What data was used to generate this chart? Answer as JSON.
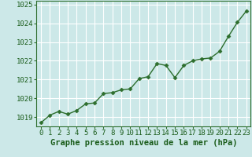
{
  "x": [
    0,
    1,
    2,
    3,
    4,
    5,
    6,
    7,
    8,
    9,
    10,
    11,
    12,
    13,
    14,
    15,
    16,
    17,
    18,
    19,
    20,
    21,
    22,
    23
  ],
  "y": [
    1018.7,
    1019.1,
    1019.3,
    1019.15,
    1019.35,
    1019.7,
    1019.75,
    1020.25,
    1020.3,
    1020.45,
    1020.5,
    1021.05,
    1021.15,
    1021.85,
    1021.75,
    1021.1,
    1021.75,
    1022.0,
    1022.1,
    1022.15,
    1022.5,
    1023.3,
    1024.05,
    1024.65
  ],
  "line_color": "#2d6e2d",
  "marker": "D",
  "marker_size": 2.5,
  "line_width": 1.0,
  "bg_color": "#cce8e8",
  "grid_color": "#ffffff",
  "xlabel": "Graphe pression niveau de la mer (hPa)",
  "xlabel_color": "#1a5c1a",
  "tick_label_color": "#1a5c1a",
  "ylim": [
    1018.5,
    1025.2
  ],
  "yticks": [
    1019,
    1020,
    1021,
    1022,
    1023,
    1024,
    1025
  ],
  "xticks": [
    0,
    1,
    2,
    3,
    4,
    5,
    6,
    7,
    8,
    9,
    10,
    11,
    12,
    13,
    14,
    15,
    16,
    17,
    18,
    19,
    20,
    21,
    22,
    23
  ],
  "xlabel_fontsize": 7.5,
  "tick_fontsize": 6.5,
  "border_color": "#2d6e2d"
}
